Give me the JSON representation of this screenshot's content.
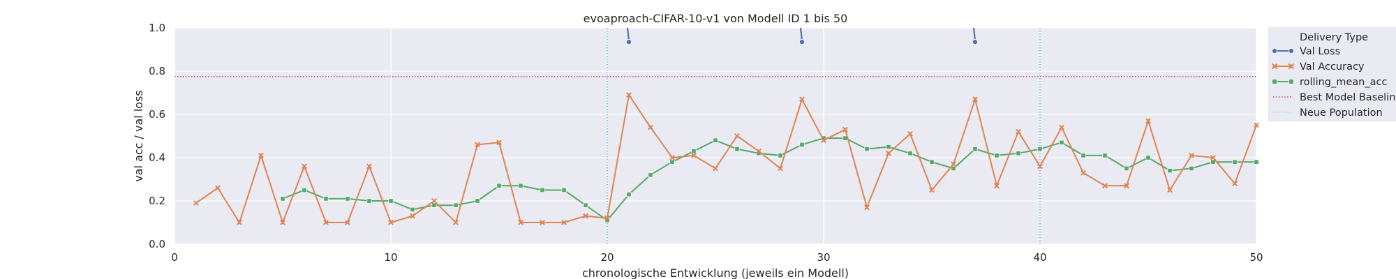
{
  "chart_data": {
    "type": "line",
    "title": "evoaproach-CIFAR-10-v1 von Modell ID 1 bis 50",
    "xlabel": "chronologische Entwicklung (jeweils ein Modell)",
    "ylabel": "val acc / val loss",
    "xlim": [
      0,
      50
    ],
    "ylim": [
      0,
      1.0
    ],
    "xticks": [
      0,
      10,
      20,
      30,
      40,
      50
    ],
    "xtick_labels": [
      "0",
      "10",
      "20",
      "30",
      "40",
      "50"
    ],
    "yticks": [
      0,
      0.2,
      0.4,
      0.6,
      0.8,
      1.0
    ],
    "ytick_labels": [
      "0.0",
      "0.2",
      "0.4",
      "0.6",
      "0.8",
      "1.0"
    ],
    "grid": true,
    "legend": {
      "title": "Delivery Type",
      "position": "outside-right",
      "entries": [
        "Val Loss",
        "Val Accuracy",
        "rolling_mean_acc",
        "Best Model Baseline",
        "Neue Population"
      ]
    },
    "colors": {
      "val_loss": "#4c72b0",
      "val_accuracy": "#dd8452",
      "rolling_mean": "#55a868",
      "baseline": "#c44e52",
      "population": "#64b5cd",
      "background": "#eaeaf2"
    },
    "series": [
      {
        "name": "Val Loss",
        "x": [
          21,
          29,
          37
        ],
        "values": [
          0.935,
          0.935,
          0.935
        ]
      },
      {
        "name": "Val Accuracy",
        "x": [
          1,
          2,
          3,
          4,
          5,
          6,
          7,
          8,
          9,
          10,
          11,
          12,
          13,
          14,
          15,
          16,
          17,
          18,
          19,
          20,
          21,
          22,
          23,
          24,
          25,
          26,
          27,
          28,
          29,
          30,
          31,
          32,
          33,
          34,
          35,
          36,
          37,
          38,
          39,
          40,
          41,
          42,
          43,
          44,
          45,
          46,
          47,
          48,
          49,
          50
        ],
        "values": [
          0.19,
          0.26,
          0.1,
          0.41,
          0.1,
          0.36,
          0.1,
          0.1,
          0.36,
          0.1,
          0.13,
          0.2,
          0.1,
          0.46,
          0.47,
          0.1,
          0.1,
          0.1,
          0.13,
          0.12,
          0.69,
          0.54,
          0.4,
          0.41,
          0.35,
          0.5,
          0.43,
          0.35,
          0.67,
          0.48,
          0.53,
          0.17,
          0.42,
          0.51,
          0.25,
          0.37,
          0.67,
          0.27,
          0.52,
          0.36,
          0.54,
          0.33,
          0.27,
          0.27,
          0.57,
          0.25,
          0.41,
          0.4,
          0.28,
          0.55
        ]
      },
      {
        "name": "rolling_mean_acc",
        "x": [
          5,
          6,
          7,
          8,
          9,
          10,
          11,
          12,
          13,
          14,
          15,
          16,
          17,
          18,
          19,
          20,
          21,
          22,
          23,
          24,
          25,
          26,
          27,
          28,
          29,
          30,
          31,
          32,
          33,
          34,
          35,
          36,
          37,
          38,
          39,
          40,
          41,
          42,
          43,
          44,
          45,
          46,
          47,
          48,
          49,
          50
        ],
        "values": [
          0.21,
          0.25,
          0.21,
          0.21,
          0.2,
          0.2,
          0.16,
          0.18,
          0.18,
          0.2,
          0.27,
          0.27,
          0.25,
          0.25,
          0.18,
          0.11,
          0.23,
          0.32,
          0.38,
          0.43,
          0.48,
          0.44,
          0.42,
          0.41,
          0.46,
          0.49,
          0.49,
          0.44,
          0.45,
          0.42,
          0.38,
          0.35,
          0.44,
          0.41,
          0.42,
          0.44,
          0.47,
          0.41,
          0.41,
          0.35,
          0.4,
          0.34,
          0.35,
          0.38,
          0.38,
          0.38
        ]
      }
    ],
    "baseline_value": 0.775,
    "population_lines": [
      20,
      40
    ]
  }
}
